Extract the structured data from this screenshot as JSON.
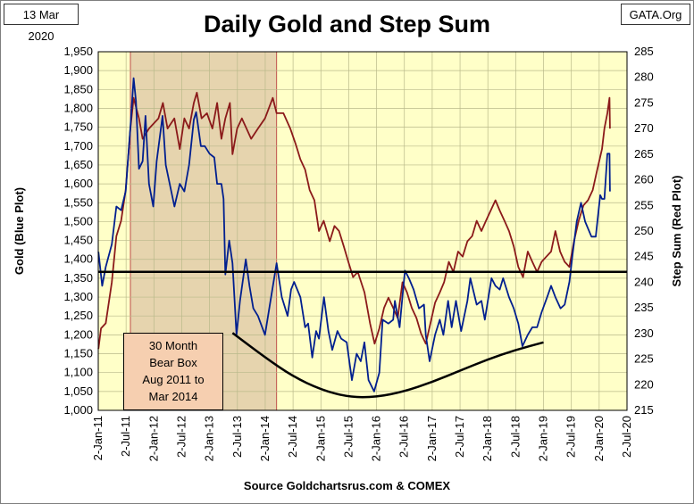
{
  "header": {
    "date": "13 Mar 2020",
    "site": "GATA.Org",
    "title": "Daily Gold and Step Sum"
  },
  "footer": {
    "source": "Source Goldchartsrus.com & COMEX"
  },
  "annotation": {
    "lines": [
      "30 Month",
      "Bear Box",
      "Aug 2011 to",
      "Mar 2014"
    ]
  },
  "colors": {
    "plot_background": "#ffffc8",
    "bear_box_fill": "#e6d4ae",
    "bear_box_edge": "#c0504d",
    "gold_series": "#001f8f",
    "step_sum_series": "#8b1a1a",
    "grid": "#b9b98a"
  },
  "chart_data": {
    "type": "line",
    "title": "Daily Gold and Step Sum",
    "xlabel": "",
    "x_tick_labels": [
      "2-Jan-11",
      "2-Jul-11",
      "2-Jan-12",
      "2-Jul-12",
      "2-Jan-13",
      "2-Jul-13",
      "2-Jan-14",
      "2-Jul-14",
      "2-Jan-15",
      "2-Jul-15",
      "2-Jan-16",
      "2-Jul-16",
      "2-Jan-17",
      "2-Jul-17",
      "2-Jan-18",
      "2-Jul-18",
      "2-Jan-19",
      "2-Jul-19",
      "2-Jan-20",
      "2-Jul-20"
    ],
    "xlim": [
      "2011-01-02",
      "2020-07-02"
    ],
    "ylabel_left": "Gold   (Blue Plot)",
    "ylabel_right": "Step Sum   (Red Plot)",
    "ylim_left": [
      1000,
      1950
    ],
    "yticks_left": [
      1000,
      1050,
      1100,
      1150,
      1200,
      1250,
      1300,
      1350,
      1400,
      1450,
      1500,
      1550,
      1600,
      1650,
      1700,
      1750,
      1800,
      1850,
      1900,
      1950
    ],
    "ylim_right": [
      215,
      285
    ],
    "yticks_right": [
      215,
      220,
      225,
      230,
      235,
      240,
      245,
      250,
      255,
      260,
      265,
      270,
      275,
      280,
      285
    ],
    "grid": true,
    "series": [
      {
        "name": "Gold",
        "axis": "left",
        "x": [
          "2011-01-03",
          "2011-01-28",
          "2011-02-20",
          "2011-04-01",
          "2011-05-01",
          "2011-06-01",
          "2011-07-01",
          "2011-08-01",
          "2011-08-22",
          "2011-09-06",
          "2011-09-26",
          "2011-10-20",
          "2011-11-08",
          "2011-12-01",
          "2011-12-29",
          "2012-01-20",
          "2012-02-28",
          "2012-03-20",
          "2012-05-16",
          "2012-06-20",
          "2012-07-20",
          "2012-08-20",
          "2012-09-20",
          "2012-10-05",
          "2012-11-05",
          "2012-12-01",
          "2013-01-01",
          "2013-02-01",
          "2013-02-20",
          "2013-03-20",
          "2013-04-03",
          "2013-04-15",
          "2013-05-10",
          "2013-06-01",
          "2013-06-27",
          "2013-07-20",
          "2013-08-27",
          "2013-09-20",
          "2013-10-15",
          "2013-11-15",
          "2013-12-31",
          "2014-01-20",
          "2014-03-17",
          "2014-04-20",
          "2014-05-28",
          "2014-06-20",
          "2014-07-10",
          "2014-08-20",
          "2014-09-20",
          "2014-10-10",
          "2014-11-06",
          "2014-12-01",
          "2014-12-20",
          "2015-01-22",
          "2015-02-20",
          "2015-03-17",
          "2015-04-20",
          "2015-05-15",
          "2015-06-20",
          "2015-07-24",
          "2015-08-24",
          "2015-09-20",
          "2015-10-14",
          "2015-11-10",
          "2015-12-17",
          "2016-01-20",
          "2016-02-11",
          "2016-03-20",
          "2016-04-20",
          "2016-05-01",
          "2016-06-01",
          "2016-06-24",
          "2016-07-06",
          "2016-08-01",
          "2016-09-01",
          "2016-10-06",
          "2016-11-08",
          "2016-11-20",
          "2016-12-15",
          "2017-01-20",
          "2017-02-20",
          "2017-03-15",
          "2017-04-15",
          "2017-05-09",
          "2017-06-06",
          "2017-07-10",
          "2017-08-20",
          "2017-09-08",
          "2017-10-20",
          "2017-11-20",
          "2017-12-12",
          "2018-01-25",
          "2018-02-20",
          "2018-03-20",
          "2018-04-11",
          "2018-05-20",
          "2018-06-20",
          "2018-07-20",
          "2018-08-16",
          "2018-09-20",
          "2018-10-20",
          "2018-11-20",
          "2018-12-20",
          "2019-01-25",
          "2019-02-20",
          "2019-03-20",
          "2019-04-23",
          "2019-05-20",
          "2019-06-20",
          "2019-07-10",
          "2019-08-07",
          "2019-09-04",
          "2019-10-01",
          "2019-11-12",
          "2019-12-10",
          "2020-01-08",
          "2020-01-20",
          "2020-02-05",
          "2020-02-24",
          "2020-03-09",
          "2020-03-12"
        ],
        "values": [
          1420,
          1330,
          1380,
          1440,
          1540,
          1530,
          1580,
          1750,
          1880,
          1820,
          1640,
          1660,
          1780,
          1600,
          1540,
          1660,
          1780,
          1650,
          1540,
          1600,
          1580,
          1650,
          1770,
          1790,
          1700,
          1700,
          1680,
          1670,
          1600,
          1600,
          1560,
          1360,
          1450,
          1390,
          1200,
          1290,
          1400,
          1330,
          1270,
          1250,
          1200,
          1250,
          1390,
          1300,
          1250,
          1320,
          1340,
          1300,
          1220,
          1230,
          1140,
          1210,
          1190,
          1300,
          1210,
          1160,
          1210,
          1190,
          1180,
          1080,
          1150,
          1130,
          1180,
          1080,
          1050,
          1100,
          1240,
          1230,
          1240,
          1290,
          1220,
          1320,
          1370,
          1350,
          1320,
          1270,
          1280,
          1200,
          1130,
          1200,
          1240,
          1200,
          1290,
          1220,
          1290,
          1210,
          1290,
          1350,
          1280,
          1290,
          1240,
          1350,
          1330,
          1320,
          1350,
          1300,
          1270,
          1230,
          1170,
          1200,
          1220,
          1220,
          1260,
          1300,
          1330,
          1300,
          1270,
          1280,
          1340,
          1410,
          1500,
          1550,
          1500,
          1460,
          1460,
          1570,
          1560,
          1560,
          1680,
          1680,
          1580
        ]
      },
      {
        "name": "Step Sum",
        "axis": "right",
        "x": [
          "2011-01-03",
          "2011-01-20",
          "2011-02-20",
          "2011-04-01",
          "2011-05-01",
          "2011-06-01",
          "2011-07-01",
          "2011-08-01",
          "2011-08-22",
          "2011-09-26",
          "2011-10-20",
          "2011-12-01",
          "2012-02-01",
          "2012-03-01",
          "2012-04-01",
          "2012-05-15",
          "2012-06-20",
          "2012-07-20",
          "2012-08-20",
          "2012-09-20",
          "2012-10-10",
          "2012-11-10",
          "2012-12-15",
          "2013-01-20",
          "2013-02-20",
          "2013-03-20",
          "2013-04-15",
          "2013-05-15",
          "2013-06-01",
          "2013-07-01",
          "2013-08-01",
          "2013-09-01",
          "2013-10-01",
          "2013-11-15",
          "2013-12-31",
          "2014-02-20",
          "2014-03-17",
          "2014-05-01",
          "2014-06-15",
          "2014-07-20",
          "2014-08-20",
          "2014-09-20",
          "2014-10-20",
          "2014-11-20",
          "2014-12-20",
          "2015-01-20",
          "2015-03-01",
          "2015-04-01",
          "2015-05-01",
          "2015-06-01",
          "2015-07-01",
          "2015-08-01",
          "2015-09-01",
          "2015-10-15",
          "2015-11-20",
          "2015-12-20",
          "2016-01-20",
          "2016-02-20",
          "2016-03-20",
          "2016-04-20",
          "2016-05-20",
          "2016-06-20",
          "2016-07-20",
          "2016-08-20",
          "2016-09-20",
          "2016-10-20",
          "2016-11-20",
          "2016-12-20",
          "2017-01-20",
          "2017-02-20",
          "2017-03-20",
          "2017-04-20",
          "2017-05-20",
          "2017-06-20",
          "2017-07-20",
          "2017-08-20",
          "2017-09-20",
          "2017-10-20",
          "2017-11-20",
          "2017-12-20",
          "2018-01-20",
          "2018-02-20",
          "2018-03-20",
          "2018-04-20",
          "2018-05-20",
          "2018-06-20",
          "2018-07-20",
          "2018-08-20",
          "2018-09-20",
          "2018-10-20",
          "2018-11-20",
          "2018-12-20",
          "2019-01-20",
          "2019-02-20",
          "2019-03-20",
          "2019-04-20",
          "2019-05-20",
          "2019-06-20",
          "2019-07-20",
          "2019-08-20",
          "2019-09-20",
          "2019-10-20",
          "2019-11-20",
          "2019-12-20",
          "2020-01-20",
          "2020-02-05",
          "2020-02-24",
          "2020-03-09",
          "2020-03-12"
        ],
        "values": [
          227,
          231,
          232,
          240,
          249,
          252,
          258,
          270,
          276,
          272,
          268,
          270,
          272,
          275,
          270,
          272,
          266,
          272,
          270,
          275,
          277,
          272,
          273,
          270,
          275,
          268,
          272,
          275,
          265,
          270,
          272,
          270,
          268,
          270,
          272,
          276,
          273,
          273,
          270,
          267,
          264,
          262,
          258,
          256,
          250,
          252,
          248,
          251,
          250,
          247,
          244,
          241,
          242,
          238,
          232,
          228,
          231,
          235,
          237,
          235,
          233,
          240,
          238,
          235,
          233,
          230,
          228,
          232,
          236,
          238,
          240,
          244,
          242,
          246,
          245,
          248,
          249,
          252,
          250,
          252,
          254,
          256,
          254,
          252,
          250,
          247,
          243,
          241,
          246,
          244,
          242,
          244,
          245,
          246,
          250,
          246,
          244,
          243,
          248,
          252,
          255,
          256,
          258,
          262,
          266,
          270,
          273,
          276,
          270
        ]
      }
    ],
    "annotations": [
      {
        "type": "horizontal_line",
        "axis": "left",
        "value": 1367,
        "color": "#000000"
      },
      {
        "type": "shaded_region",
        "x_start": "2011-08-01",
        "x_end": "2014-03-17"
      },
      {
        "type": "trend_curve",
        "axis": "left",
        "x": [
          "2013-06-01",
          "2014-01-01",
          "2014-07-01",
          "2015-01-01",
          "2015-07-01",
          "2016-01-01",
          "2016-07-01",
          "2017-01-01",
          "2017-07-01",
          "2018-01-01",
          "2018-07-01",
          "2019-01-01"
        ],
        "values": [
          1205,
          1140,
          1090,
          1055,
          1035,
          1035,
          1050,
          1075,
          1105,
          1135,
          1160,
          1180
        ],
        "color": "#000000"
      }
    ]
  }
}
